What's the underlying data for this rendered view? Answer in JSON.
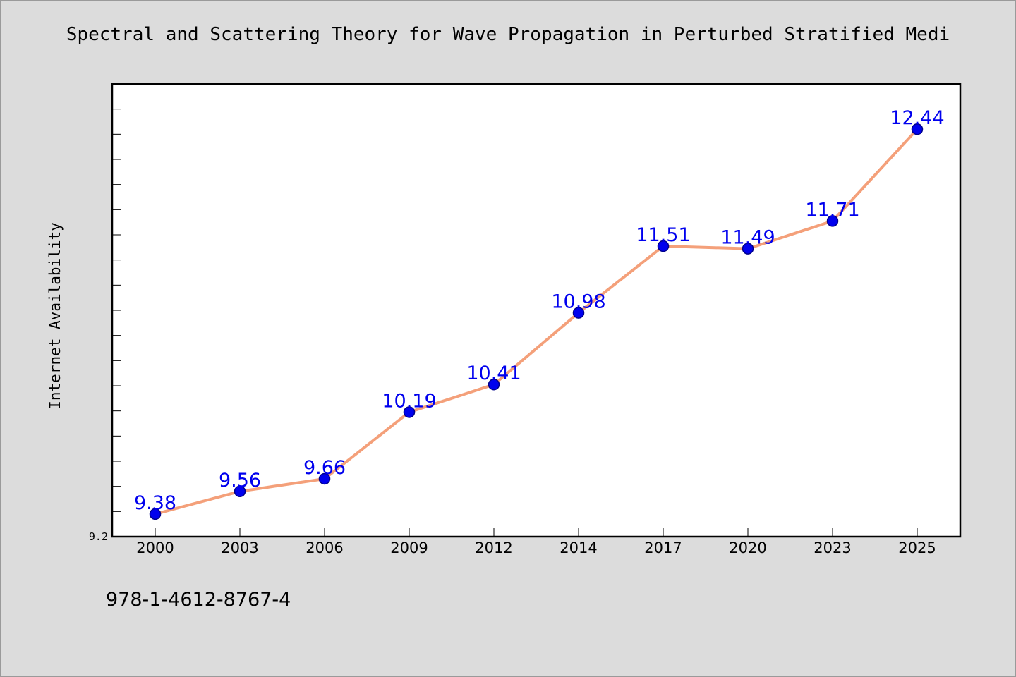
{
  "chart_data": {
    "type": "line",
    "title": "Spectral and Scattering Theory for Wave Propagation in Perturbed Stratified Medi",
    "xlabel": "",
    "ylabel": "Internet Availability",
    "categories": [
      "2000",
      "2003",
      "2006",
      "2009",
      "2012",
      "2014",
      "2017",
      "2020",
      "2023",
      "2025"
    ],
    "series": [
      {
        "values": [
          9.38,
          9.56,
          9.66,
          10.19,
          10.41,
          10.98,
          11.51,
          11.49,
          11.71,
          12.44
        ],
        "line_color": "#f4a07a",
        "marker_color": "#0000ee"
      }
    ],
    "data_labels": [
      "9.38",
      "9.56",
      "9.66",
      "10.19",
      "10.41",
      "10.98",
      "11.51",
      "11.49",
      "11.71",
      "12.44"
    ],
    "ylim": [
      9.2,
      12.8
    ],
    "ytick_labels": [
      "9.2"
    ],
    "grid": false,
    "label_color": "#0000ee"
  },
  "footer": {
    "isbn": "978-1-4612-8767-4"
  }
}
